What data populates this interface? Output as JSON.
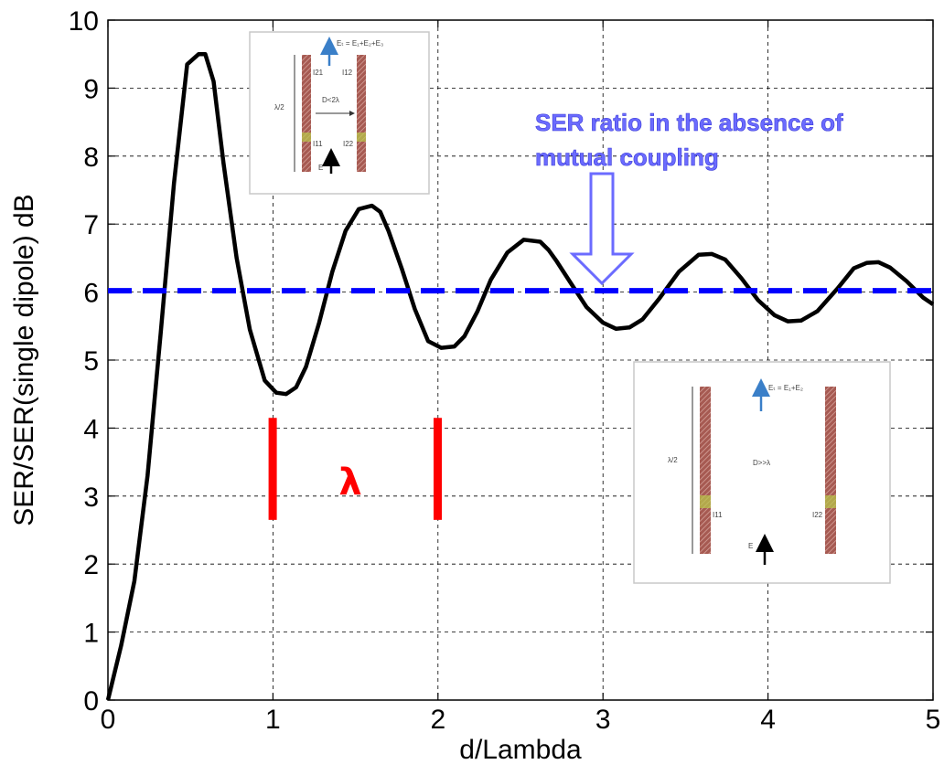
{
  "chart_data": {
    "type": "line",
    "xlabel": "d/Lambda",
    "ylabel": "SER/SER(single dipole) dB",
    "xlim": [
      0,
      5
    ],
    "ylim": [
      0,
      10
    ],
    "xticks": [
      "0",
      "1",
      "2",
      "3",
      "4",
      "5"
    ],
    "yticks": [
      "0",
      "1",
      "2",
      "3",
      "4",
      "5",
      "6",
      "7",
      "8",
      "9",
      "10"
    ],
    "grid": true,
    "series": [
      {
        "color": "#000000",
        "style": "solid",
        "x": [
          0,
          0.08,
          0.16,
          0.24,
          0.32,
          0.4,
          0.48,
          0.55,
          0.59,
          0.64,
          0.7,
          0.78,
          0.86,
          0.95,
          1.02,
          1.08,
          1.14,
          1.2,
          1.28,
          1.36,
          1.44,
          1.52,
          1.6,
          1.65,
          1.7,
          1.78,
          1.86,
          1.94,
          2.02,
          2.1,
          2.16,
          2.24,
          2.32,
          2.42,
          2.52,
          2.62,
          2.67,
          2.72,
          2.8,
          2.9,
          3.0,
          3.08,
          3.16,
          3.24,
          3.34,
          3.46,
          3.58,
          3.66,
          3.74,
          3.84,
          3.94,
          4.04,
          4.12,
          4.2,
          4.3,
          4.42,
          4.52,
          4.6,
          4.67,
          4.74,
          4.84,
          4.94,
          5.0
        ],
        "y": [
          0,
          0.8,
          1.75,
          3.3,
          5.4,
          7.6,
          9.35,
          9.5,
          9.5,
          9.1,
          7.9,
          6.5,
          5.45,
          4.7,
          4.52,
          4.5,
          4.6,
          4.9,
          5.55,
          6.3,
          6.9,
          7.22,
          7.27,
          7.18,
          6.9,
          6.35,
          5.75,
          5.28,
          5.18,
          5.2,
          5.35,
          5.72,
          6.18,
          6.58,
          6.77,
          6.74,
          6.62,
          6.45,
          6.15,
          5.78,
          5.55,
          5.46,
          5.48,
          5.6,
          5.9,
          6.3,
          6.55,
          6.56,
          6.48,
          6.2,
          5.88,
          5.66,
          5.57,
          5.58,
          5.72,
          6.05,
          6.35,
          6.43,
          6.44,
          6.36,
          6.16,
          5.92,
          5.82
        ]
      },
      {
        "color": "#0000ff",
        "style": "dashed",
        "x": [
          0,
          5
        ],
        "y": [
          6.02,
          6.02
        ]
      }
    ],
    "annotations": [
      {
        "text_lines": [
          "SER ratio in the absence of",
          "mutual coupling"
        ],
        "color": "#6b6bff"
      },
      {
        "text": "λ",
        "color": "#ff0000",
        "marker_x": [
          0.99,
          1.99
        ],
        "y_range": [
          2.65,
          4.15
        ]
      }
    ],
    "insets": [
      {
        "labels": {
          "field": "Eₜ = E₁+E₂+E₃",
          "i21": "I21",
          "i12": "I12",
          "i11": "I11",
          "i22": "I22",
          "half": "λ/2",
          "dist": "D<2λ",
          "e": "E"
        }
      },
      {
        "labels": {
          "field": "Eₜ = E₁+E₂",
          "half": "λ/2",
          "dist": "D>>λ",
          "i11": "I11",
          "i22": "I22",
          "e": "E"
        }
      }
    ]
  }
}
